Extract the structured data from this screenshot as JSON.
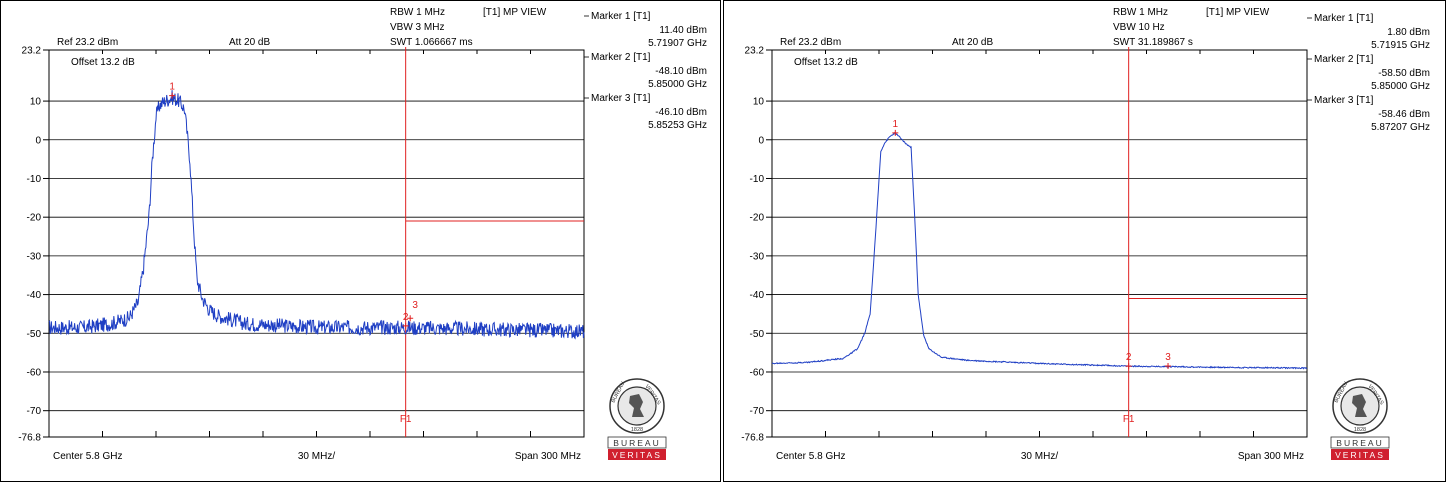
{
  "colors": {
    "trace": "#1f3fc4",
    "marker": "#e02020",
    "grid": "#000000",
    "logo_red": "#d0202f"
  },
  "logo": {
    "text_top": "BUREAU",
    "text_bottom": "VERITAS",
    "seal_text": "BUREAU VERITAS",
    "seal_year": "1828"
  },
  "chart_data": [
    {
      "type": "line",
      "title": "",
      "xlabel": "",
      "ylabel": "",
      "ylim": [
        -76.8,
        23.2
      ],
      "xlim": [
        5650,
        5950
      ],
      "grid": true,
      "settings": {
        "ref": "Ref 23.2 dBm",
        "att": "Att  20 dB",
        "offset": "Offset 13.2 dB",
        "rbw": "RBW 1 MHz",
        "vbw": "VBW 3 MHz",
        "swt": "SWT 1.066667 ms",
        "view": "[T1] MP VIEW",
        "center": "Center 5.8 GHz",
        "div": "30 MHz/",
        "span": "Span 300 MHz"
      },
      "y_ticks": [
        "23.2",
        "10",
        "0",
        "-10",
        "-20",
        "-30",
        "-40",
        "-50",
        "-60",
        "-70",
        "-76.8"
      ],
      "y_tick_values": [
        23.2,
        10,
        0,
        -10,
        -20,
        -30,
        -40,
        -50,
        -60,
        -70,
        -76.8
      ],
      "markers": [
        {
          "label": "Marker 1 [T1]",
          "level": "11.40 dBm",
          "freq": "5.71907 GHz",
          "num": "1",
          "x": 5719.07,
          "y": 11.4
        },
        {
          "label": "Marker 2 [T1]",
          "level": "-48.10 dBm",
          "freq": "5.85000 GHz",
          "num": "2",
          "x": 5850.0,
          "y": -48.1
        },
        {
          "label": "Marker 3 [T1]",
          "level": "-46.10 dBm",
          "freq": "5.85253 GHz",
          "num": "3",
          "x": 5852.53,
          "y": -46.1
        }
      ],
      "f1": {
        "label": "F1",
        "x": 5850
      },
      "limit_line": {
        "x_start": 5850,
        "y": -21
      },
      "series": [
        {
          "trace": "noisy",
          "x": [
            5650,
            5670,
            5685,
            5695,
            5700,
            5703,
            5706,
            5708,
            5710,
            5712,
            5715,
            5719,
            5723,
            5726,
            5729,
            5731,
            5733,
            5736,
            5740,
            5745,
            5760,
            5800,
            5850,
            5900,
            5950
          ],
          "values": [
            -48.5,
            -48.5,
            -47.5,
            -46,
            -42,
            -33,
            -20,
            -5,
            6,
            9,
            10,
            11,
            10,
            8,
            -5,
            -22,
            -36,
            -41,
            -44,
            -45.5,
            -47.5,
            -48.5,
            -48.5,
            -49,
            -49.5
          ],
          "noise": 1.2
        }
      ]
    },
    {
      "type": "line",
      "title": "",
      "xlabel": "",
      "ylabel": "",
      "ylim": [
        -76.8,
        23.2
      ],
      "xlim": [
        5650,
        5950
      ],
      "grid": true,
      "settings": {
        "ref": "Ref 23.2 dBm",
        "att": "Att  20 dB",
        "offset": "Offset 13.2 dB",
        "rbw": "RBW 1 MHz",
        "vbw": "VBW 10 Hz",
        "swt": "SWT 31.189867 s",
        "view": "[T1] MP VIEW",
        "center": "Center 5.8 GHz",
        "div": "30 MHz/",
        "span": "Span 300 MHz"
      },
      "y_ticks": [
        "23.2",
        "10",
        "0",
        "-10",
        "-20",
        "-30",
        "-40",
        "-50",
        "-60",
        "-70",
        "-76.8"
      ],
      "y_tick_values": [
        23.2,
        10,
        0,
        -10,
        -20,
        -30,
        -40,
        -50,
        -60,
        -70,
        -76.8
      ],
      "markers": [
        {
          "label": "Marker 1 [T1]",
          "level": "1.80 dBm",
          "freq": "5.71915 GHz",
          "num": "1",
          "x": 5719.15,
          "y": 1.8
        },
        {
          "label": "Marker 2 [T1]",
          "level": "-58.50 dBm",
          "freq": "5.85000 GHz",
          "num": "2",
          "x": 5850.0,
          "y": -58.5
        },
        {
          "label": "Marker 3 [T1]",
          "level": "-58.46 dBm",
          "freq": "5.87207 GHz",
          "num": "3",
          "x": 5872.07,
          "y": -58.46
        }
      ],
      "f1": {
        "label": "F1",
        "x": 5850
      },
      "limit_line": {
        "x_start": 5850,
        "y": -41
      },
      "series": [
        {
          "trace": "smooth",
          "x": [
            5650,
            5670,
            5690,
            5698,
            5702,
            5705,
            5708,
            5711,
            5713,
            5716,
            5719,
            5722,
            5725,
            5728,
            5730,
            5732,
            5735,
            5738,
            5745,
            5760,
            5800,
            5850,
            5870,
            5900,
            5950
          ],
          "values": [
            -57.8,
            -57.5,
            -56.5,
            -54,
            -50,
            -45,
            -25,
            -3,
            -1,
            0.8,
            1.8,
            0.5,
            -1,
            -2,
            -20,
            -40,
            -50.5,
            -54,
            -56.2,
            -57,
            -57.8,
            -58.5,
            -58.6,
            -58.8,
            -59
          ],
          "noise": 0.15
        }
      ]
    }
  ]
}
